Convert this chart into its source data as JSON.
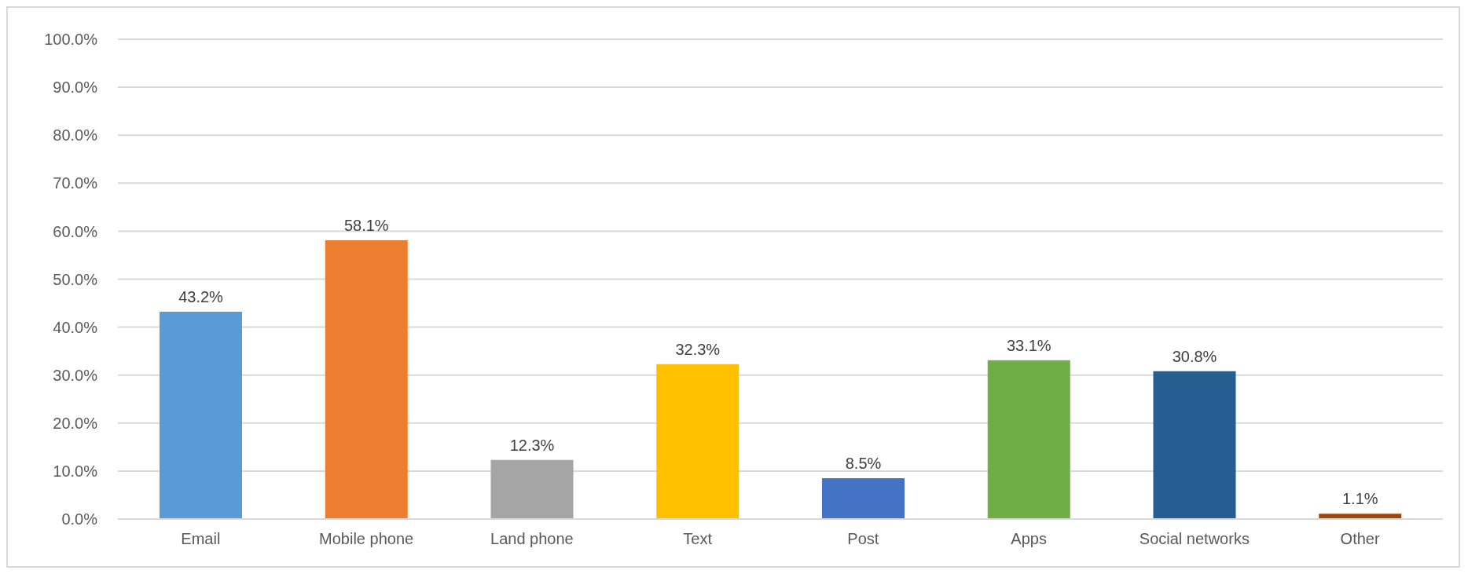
{
  "chart_data": {
    "type": "bar",
    "categories": [
      "Email",
      "Mobile phone",
      "Land phone",
      "Text",
      "Post",
      "Apps",
      "Social networks",
      "Other"
    ],
    "values": [
      43.2,
      58.1,
      12.3,
      32.3,
      8.5,
      33.1,
      30.8,
      1.1
    ],
    "colors": [
      "#5b9bd5",
      "#ed7d31",
      "#a5a5a5",
      "#ffc000",
      "#4472c4",
      "#70ad47",
      "#255e91",
      "#9e480e"
    ],
    "value_labels": [
      "43.2%",
      "58.1%",
      "12.3%",
      "32.3%",
      "8.5%",
      "33.1%",
      "30.8%",
      "1.1%"
    ],
    "ylim": [
      0,
      100
    ],
    "yticks": [
      {
        "value": 0,
        "label": "0.0%"
      },
      {
        "value": 10,
        "label": "10.0%"
      },
      {
        "value": 20,
        "label": "20.0%"
      },
      {
        "value": 30,
        "label": "30.0%"
      },
      {
        "value": 40,
        "label": "40.0%"
      },
      {
        "value": 50,
        "label": "50.0%"
      },
      {
        "value": 60,
        "label": "60.0%"
      },
      {
        "value": 70,
        "label": "70.0%"
      },
      {
        "value": 80,
        "label": "80.0%"
      },
      {
        "value": 90,
        "label": "90.0%"
      },
      {
        "value": 100,
        "label": "100.0%"
      }
    ],
    "grid": "y",
    "legend": false
  }
}
